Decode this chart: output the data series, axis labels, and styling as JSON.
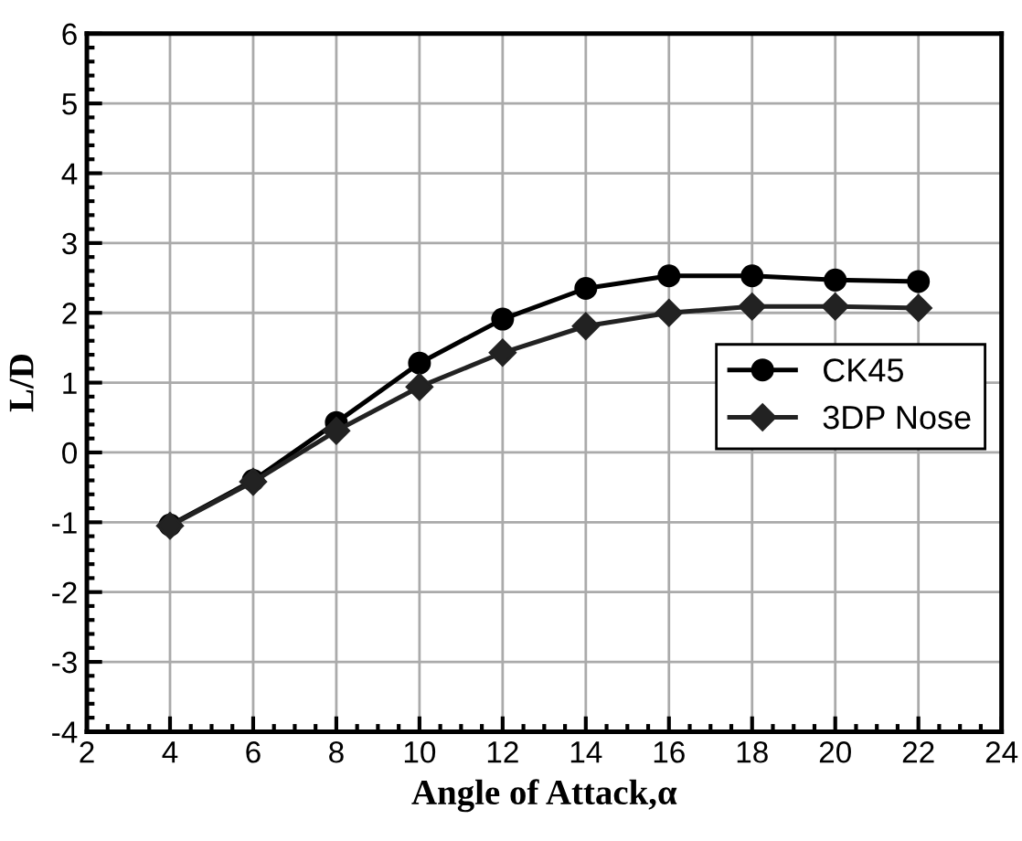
{
  "chart_data": {
    "type": "line",
    "xlabel": "Angle of Attack,α",
    "ylabel": "L/D",
    "x": [
      4,
      6,
      8,
      10,
      12,
      14,
      16,
      18,
      20,
      22
    ],
    "series": [
      {
        "name": "CK45",
        "color": "#000000",
        "marker": "circle",
        "values": [
          -1.04,
          -0.4,
          0.43,
          1.28,
          1.91,
          2.35,
          2.53,
          2.53,
          2.47,
          2.45
        ]
      },
      {
        "name": "3DP Nose",
        "color": "#222222",
        "marker": "diamond",
        "values": [
          -1.05,
          -0.42,
          0.31,
          0.94,
          1.43,
          1.81,
          2.0,
          2.09,
          2.09,
          2.07
        ]
      }
    ],
    "xlim": [
      2,
      24
    ],
    "xticks": [
      2,
      4,
      6,
      8,
      10,
      12,
      14,
      16,
      18,
      20,
      22,
      24
    ],
    "ylim": [
      -4,
      6
    ],
    "yticks": [
      -4,
      -3,
      -2,
      -1,
      0,
      1,
      2,
      3,
      4,
      5,
      6
    ],
    "grid": true,
    "legend": "right",
    "line_style": "solid"
  }
}
